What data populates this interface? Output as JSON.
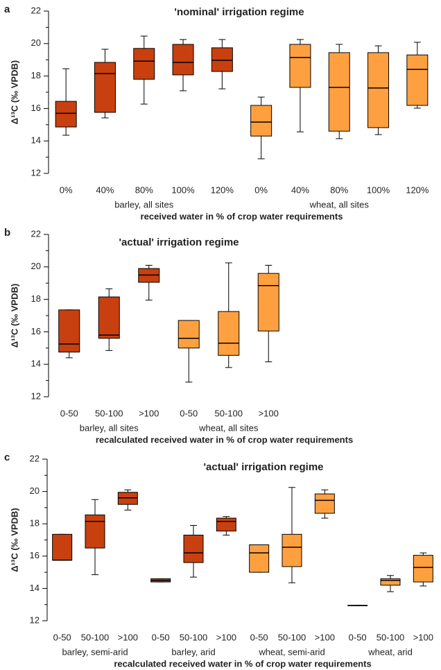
{
  "chart_data": [
    {
      "type": "box",
      "panel": "a",
      "title": "'nominal' irrigation regime",
      "ylabel": "Δ¹³C (‰ VPDB)",
      "xlabel": "received water in % of crop water requirements",
      "ylim": [
        12,
        22
      ],
      "yticks": [
        12,
        14,
        16,
        18,
        20,
        22
      ],
      "yminorticks": [
        13,
        15,
        17,
        19,
        21
      ],
      "series": [
        {
          "name": "barley, all sites",
          "color": "#c8400f",
          "categories": [
            "0%",
            "40%",
            "80%",
            "100%",
            "120%"
          ],
          "boxes": [
            {
              "whislo": 14.35,
              "q1": 14.86,
              "med": 15.7,
              "q3": 16.44,
              "whishi": 18.45
            },
            {
              "whislo": 15.42,
              "q1": 15.76,
              "med": 18.15,
              "q3": 18.84,
              "whishi": 19.65
            },
            {
              "whislo": 16.27,
              "q1": 17.8,
              "med": 18.92,
              "q3": 19.7,
              "whishi": 20.46
            },
            {
              "whislo": 17.09,
              "q1": 18.07,
              "med": 18.84,
              "q3": 19.95,
              "whishi": 20.25
            },
            {
              "whislo": 17.21,
              "q1": 18.28,
              "med": 18.97,
              "q3": 19.74,
              "whishi": 20.25
            }
          ]
        },
        {
          "name": "wheat, all sites",
          "color": "#ffa040",
          "categories": [
            "0%",
            "40%",
            "80%",
            "100%",
            "120%"
          ],
          "boxes": [
            {
              "whislo": 12.9,
              "q1": 14.3,
              "med": 15.16,
              "q3": 16.19,
              "whishi": 16.7
            },
            {
              "whislo": 14.56,
              "q1": 17.3,
              "med": 19.14,
              "q3": 19.95,
              "whishi": 20.25
            },
            {
              "whislo": 14.14,
              "q1": 14.6,
              "med": 17.3,
              "q3": 19.44,
              "whishi": 19.95
            },
            {
              "whislo": 14.39,
              "q1": 14.82,
              "med": 17.26,
              "q3": 19.44,
              "whishi": 19.86
            },
            {
              "whislo": 16.02,
              "q1": 16.19,
              "med": 18.41,
              "q3": 19.3,
              "whishi": 20.08
            }
          ]
        }
      ]
    },
    {
      "type": "box",
      "panel": "b",
      "title": "'actual' irrigation regime",
      "ylabel": "Δ¹³C (‰ VPDB)",
      "xlabel": "recalculated received water in % of crop water requirements",
      "ylim": [
        12,
        22
      ],
      "yticks": [
        12,
        14,
        16,
        18,
        20,
        22
      ],
      "yminorticks": [
        13,
        15,
        17,
        19,
        21
      ],
      "series": [
        {
          "name": "barley, all sites",
          "color": "#c8400f",
          "categories": [
            "0-50",
            "50-100",
            ">100"
          ],
          "boxes": [
            {
              "whislo": 14.4,
              "q1": 14.75,
              "med": 15.25,
              "q3": 17.35,
              "whishi": 17.35
            },
            {
              "whislo": 14.85,
              "q1": 15.6,
              "med": 15.8,
              "q3": 18.15,
              "whishi": 18.65
            },
            {
              "whislo": 17.95,
              "q1": 19.05,
              "med": 19.5,
              "q3": 19.9,
              "whishi": 20.1
            }
          ]
        },
        {
          "name": "wheat, all sites",
          "color": "#ffa040",
          "categories": [
            "0-50",
            "50-100",
            ">100"
          ],
          "boxes": [
            {
              "whislo": 12.9,
              "q1": 15.0,
              "med": 15.6,
              "q3": 16.7,
              "whishi": 16.7
            },
            {
              "whislo": 13.8,
              "q1": 14.55,
              "med": 15.3,
              "q3": 17.25,
              "whishi": 20.25
            },
            {
              "whislo": 14.15,
              "q1": 16.05,
              "med": 18.85,
              "q3": 19.6,
              "whishi": 20.1
            }
          ]
        }
      ]
    },
    {
      "type": "box",
      "panel": "c",
      "title": "'actual' irrigation regime",
      "ylabel": "Δ¹³C (‰ VPDB)",
      "xlabel": "recalculated received water in % of crop water requirements",
      "ylim": [
        12,
        22
      ],
      "yticks": [
        12,
        14,
        16,
        18,
        20,
        22
      ],
      "yminorticks": [
        13,
        15,
        17,
        19,
        21
      ],
      "series": [
        {
          "name": "barley, semi-arid",
          "color": "#c8400f",
          "categories": [
            "0-50",
            "50-100",
            ">100"
          ],
          "boxes": [
            {
              "whislo": 15.75,
              "q1": 15.75,
              "med": 15.75,
              "q3": 17.35,
              "whishi": 17.35
            },
            {
              "whislo": 14.85,
              "q1": 16.5,
              "med": 18.15,
              "q3": 18.55,
              "whishi": 19.5
            },
            {
              "whislo": 18.85,
              "q1": 19.2,
              "med": 19.6,
              "q3": 19.95,
              "whishi": 20.1
            }
          ]
        },
        {
          "name": "barley, arid",
          "color": "#c8400f",
          "categories": [
            "0-50",
            "50-100",
            ">100"
          ],
          "boxes": [
            {
              "whislo": 14.4,
              "q1": 14.4,
              "med": 14.5,
              "q3": 14.6,
              "whishi": 14.6
            },
            {
              "whislo": 14.7,
              "q1": 15.6,
              "med": 16.2,
              "q3": 17.3,
              "whishi": 17.9
            },
            {
              "whislo": 17.3,
              "q1": 17.55,
              "med": 18.15,
              "q3": 18.35,
              "whishi": 18.45
            }
          ]
        },
        {
          "name": "wheat, semi-arid",
          "color": "#ffa040",
          "categories": [
            "0-50",
            "50-100",
            ">100"
          ],
          "boxes": [
            {
              "whislo": 15.0,
              "q1": 15.0,
              "med": 16.2,
              "q3": 16.7,
              "whishi": 16.7
            },
            {
              "whislo": 14.35,
              "q1": 15.35,
              "med": 16.55,
              "q3": 17.35,
              "whishi": 20.25
            },
            {
              "whislo": 18.35,
              "q1": 18.65,
              "med": 19.45,
              "q3": 19.85,
              "whishi": 20.1
            }
          ]
        },
        {
          "name": "wheat, arid",
          "color": "#ffa040",
          "categories": [
            "0-50",
            "50-100",
            ">100"
          ],
          "boxes": [
            {
              "whislo": 12.95,
              "q1": 12.95,
              "med": 12.95,
              "q3": 12.95,
              "whishi": 12.95
            },
            {
              "whislo": 13.8,
              "q1": 14.2,
              "med": 14.5,
              "q3": 14.6,
              "whishi": 14.8
            },
            {
              "whislo": 14.15,
              "q1": 14.4,
              "med": 15.3,
              "q3": 16.05,
              "whishi": 16.2
            }
          ]
        }
      ]
    }
  ]
}
